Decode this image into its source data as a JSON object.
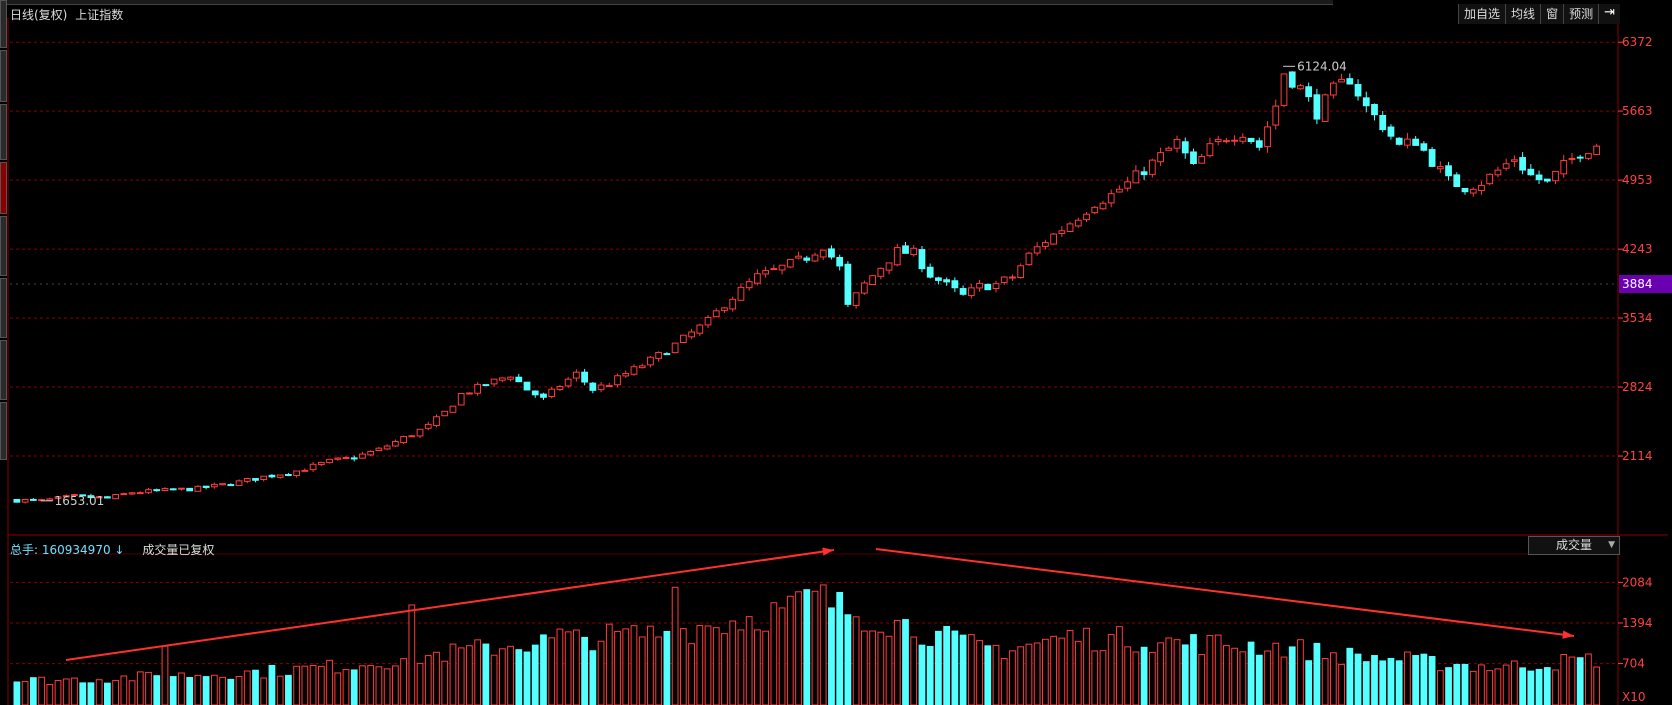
{
  "header": {
    "period": "日线(复权)",
    "index_name": "上证指数"
  },
  "toolbar": {
    "items": [
      "加自选",
      "均线",
      "窗",
      "预测"
    ],
    "exit_icon": "exit-arrow-icon"
  },
  "volume_header": {
    "total_label": "总手:",
    "total_value": "160934970",
    "arrow": "↓",
    "note": "成交量已复权",
    "indicator": "成交量"
  },
  "colors": {
    "up": "#ff3b3b",
    "down": "#54ffff",
    "grid": "#8b0000",
    "axis_text": "#ff4040",
    "current_price_bg": "#6a00b0"
  },
  "chart_data": [
    {
      "type": "candlestick",
      "title": "",
      "xlabel": "",
      "ylabel": "",
      "ylim": [
        1353,
        6580
      ],
      "y_ticks": [
        "6372",
        "5663",
        "4953",
        "4243",
        "3534",
        "2824",
        "2114"
      ],
      "current_price": "3884",
      "annotations": {
        "low": "1653.01",
        "high": "6124.04"
      },
      "close_path": [
        [
          0,
          1660
        ],
        [
          3,
          1653
        ],
        [
          7,
          1700
        ],
        [
          11,
          1680
        ],
        [
          14,
          1740
        ],
        [
          18,
          1760
        ],
        [
          22,
          1780
        ],
        [
          26,
          1830
        ],
        [
          30,
          1900
        ],
        [
          34,
          1960
        ],
        [
          38,
          2060
        ],
        [
          41,
          2100
        ],
        [
          44,
          2180
        ],
        [
          47,
          2300
        ],
        [
          50,
          2420
        ],
        [
          52,
          2560
        ],
        [
          54,
          2750
        ],
        [
          57,
          2850
        ],
        [
          60,
          2950
        ],
        [
          62,
          2800
        ],
        [
          64,
          2700
        ],
        [
          66,
          2840
        ],
        [
          68,
          2960
        ],
        [
          70,
          2800
        ],
        [
          72,
          2860
        ],
        [
          74,
          2960
        ],
        [
          76,
          3050
        ],
        [
          78,
          3150
        ],
        [
          80,
          3260
        ],
        [
          82,
          3380
        ],
        [
          84,
          3500
        ],
        [
          86,
          3680
        ],
        [
          88,
          3820
        ],
        [
          90,
          3960
        ],
        [
          92,
          4020
        ],
        [
          94,
          4090
        ],
        [
          96,
          4160
        ],
        [
          98,
          4280
        ],
        [
          100,
          4050
        ],
        [
          101,
          3650
        ],
        [
          103,
          3880
        ],
        [
          105,
          4060
        ],
        [
          107,
          4220
        ],
        [
          109,
          4200
        ],
        [
          111,
          3980
        ],
        [
          113,
          3870
        ],
        [
          115,
          3760
        ],
        [
          117,
          3860
        ],
        [
          119,
          3880
        ],
        [
          121,
          3960
        ],
        [
          123,
          4180
        ],
        [
          125,
          4330
        ],
        [
          127,
          4450
        ],
        [
          129,
          4580
        ],
        [
          131,
          4720
        ],
        [
          133,
          4800
        ],
        [
          135,
          4920
        ],
        [
          137,
          5060
        ],
        [
          139,
          5200
        ],
        [
          141,
          5340
        ],
        [
          143,
          5080
        ],
        [
          145,
          5280
        ],
        [
          147,
          5400
        ],
        [
          149,
          5450
        ],
        [
          151,
          5300
        ],
        [
          153,
          5720
        ],
        [
          154,
          6060
        ],
        [
          156,
          5900
        ],
        [
          158,
          5650
        ],
        [
          160,
          5880
        ],
        [
          162,
          6000
        ],
        [
          164,
          5700
        ],
        [
          166,
          5520
        ],
        [
          168,
          5300
        ],
        [
          170,
          5360
        ],
        [
          172,
          5150
        ],
        [
          174,
          4950
        ],
        [
          176,
          4880
        ],
        [
          178,
          4930
        ],
        [
          180,
          5050
        ],
        [
          182,
          5180
        ],
        [
          184,
          5000
        ],
        [
          186,
          4920
        ],
        [
          188,
          5100
        ],
        [
          190,
          5240
        ],
        [
          192,
          5320
        ]
      ]
    },
    {
      "type": "bar",
      "title": "",
      "ylim": [
        0,
        2600
      ],
      "y_ticks": [
        "2084",
        "1394",
        "704",
        "X10"
      ],
      "volume_path": [
        [
          0,
          420
        ],
        [
          10,
          460
        ],
        [
          20,
          520
        ],
        [
          30,
          580
        ],
        [
          40,
          690
        ],
        [
          50,
          860
        ],
        [
          60,
          1050
        ],
        [
          70,
          1180
        ],
        [
          80,
          1280
        ],
        [
          88,
          1500
        ],
        [
          92,
          1620
        ],
        [
          96,
          1780
        ],
        [
          98,
          1860
        ],
        [
          100,
          1700
        ],
        [
          104,
          1550
        ],
        [
          108,
          1400
        ],
        [
          112,
          1200
        ],
        [
          116,
          1050
        ],
        [
          120,
          980
        ],
        [
          124,
          1080
        ],
        [
          128,
          1200
        ],
        [
          132,
          1160
        ],
        [
          136,
          1150
        ],
        [
          140,
          1100
        ],
        [
          144,
          1080
        ],
        [
          148,
          1060
        ],
        [
          152,
          1030
        ],
        [
          156,
          980
        ],
        [
          160,
          880
        ],
        [
          164,
          840
        ],
        [
          168,
          800
        ],
        [
          172,
          740
        ],
        [
          176,
          700
        ],
        [
          180,
          660
        ],
        [
          184,
          700
        ],
        [
          188,
          760
        ],
        [
          192,
          800
        ]
      ],
      "spikes": [
        [
          18,
          1000
        ],
        [
          48,
          1700
        ],
        [
          66,
          1290
        ],
        [
          80,
          2000
        ],
        [
          83,
          1350
        ],
        [
          96,
          1960
        ]
      ],
      "trend_annotations": [
        "rising-arrow",
        "falling-arrow"
      ]
    }
  ]
}
